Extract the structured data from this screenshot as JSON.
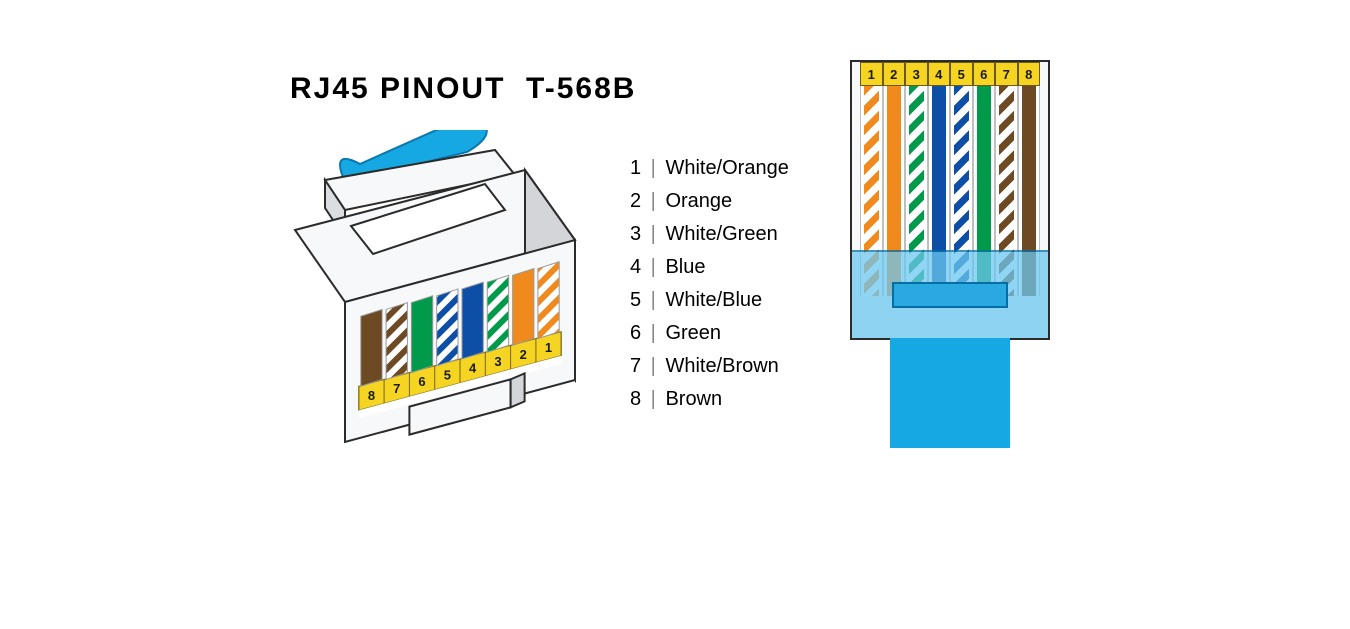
{
  "title": "RJ45 PINOUT  T-568B",
  "title_fontsize": 30,
  "background_color": "#ffffff",
  "text_color": "#000000",
  "cable_color": "#16a8e2",
  "sheath_color": "#6cc7ef",
  "pin_tab_color": "#f5d522",
  "outline_color": "#2b2b2b",
  "body_color": "#f7f8f9",
  "legend_sep": "|",
  "legend_fontsize": 20,
  "pins": [
    {
      "num": "1",
      "label": "White/Orange",
      "solid": "#f08a1d",
      "striped": true
    },
    {
      "num": "2",
      "label": "Orange",
      "solid": "#f08a1d",
      "striped": false
    },
    {
      "num": "3",
      "label": "White/Green",
      "solid": "#009a4a",
      "striped": true
    },
    {
      "num": "4",
      "label": "Blue",
      "solid": "#0d4fa6",
      "striped": false
    },
    {
      "num": "5",
      "label": "White/Blue",
      "solid": "#0d4fa6",
      "striped": true
    },
    {
      "num": "6",
      "label": "Green",
      "solid": "#009a4a",
      "striped": false
    },
    {
      "num": "7",
      "label": "White/Brown",
      "solid": "#6e4a24",
      "striped": true
    },
    {
      "num": "8",
      "label": "Brown",
      "solid": "#6e4a24",
      "striped": false
    }
  ],
  "iso_pin_order": [
    "8",
    "7",
    "6",
    "5",
    "4",
    "3",
    "2",
    "1"
  ]
}
